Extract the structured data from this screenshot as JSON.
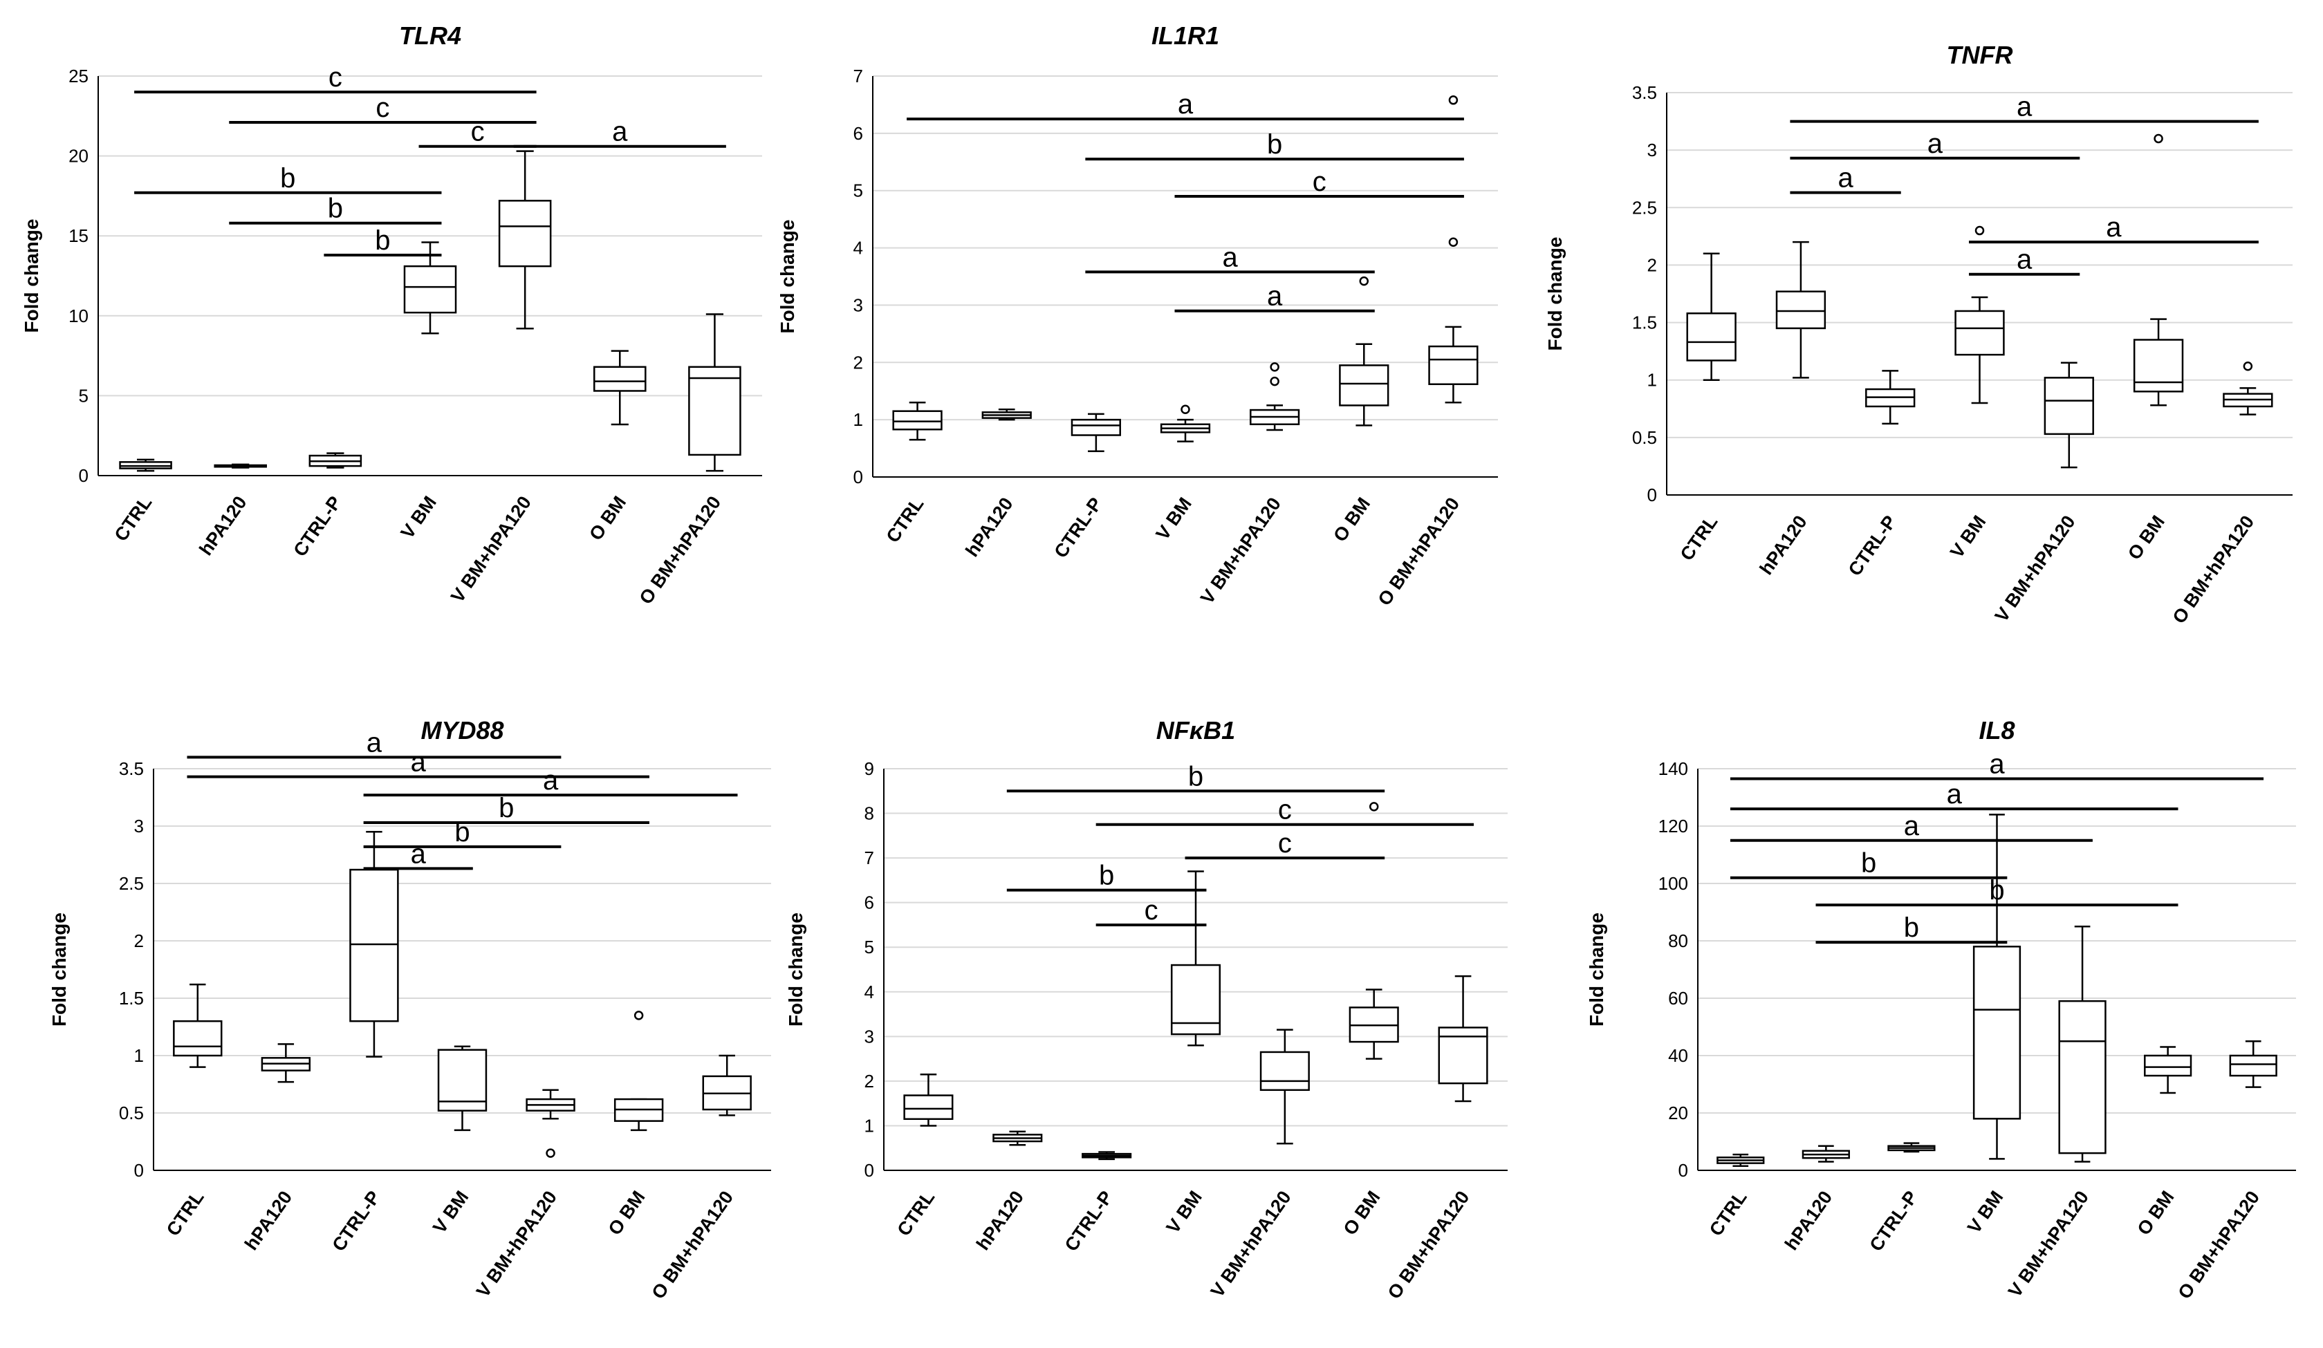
{
  "figure": {
    "background": "#ffffff",
    "line_color": "#000000",
    "grid_color": "#d9d9d9",
    "box_fill": "#ffffff"
  },
  "chart_data": [
    {
      "type": "box",
      "title": "TLR4",
      "ylabel": "Fold change",
      "ylim": [
        0,
        25
      ],
      "yticks": [
        0,
        5,
        10,
        15,
        20,
        25
      ],
      "grid": true,
      "categories": [
        "CTRL",
        "hPA120",
        "CTRL-P",
        "V BM",
        "V BM+hPA120",
        "O BM",
        "O BM+hPA120"
      ],
      "boxes": [
        {
          "min": 0.3,
          "q1": 0.45,
          "median": 0.6,
          "q3": 0.85,
          "max": 1.0,
          "outliers": []
        },
        {
          "min": 0.5,
          "q1": 0.55,
          "median": 0.6,
          "q3": 0.65,
          "max": 0.7,
          "outliers": []
        },
        {
          "min": 0.5,
          "q1": 0.6,
          "median": 0.9,
          "q3": 1.25,
          "max": 1.4,
          "outliers": []
        },
        {
          "min": 8.9,
          "q1": 10.2,
          "median": 11.8,
          "q3": 13.1,
          "max": 14.6,
          "outliers": []
        },
        {
          "min": 9.2,
          "q1": 13.1,
          "median": 15.6,
          "q3": 17.2,
          "max": 20.3,
          "outliers": []
        },
        {
          "min": 3.2,
          "q1": 5.3,
          "median": 5.9,
          "q3": 6.8,
          "max": 7.8,
          "outliers": []
        },
        {
          "min": 0.3,
          "q1": 1.3,
          "median": 6.1,
          "q3": 6.8,
          "max": 10.1,
          "outliers": []
        }
      ],
      "comparisons": [
        {
          "from": 0,
          "to": 4,
          "y": 24.0,
          "label": "c"
        },
        {
          "from": 1,
          "to": 4,
          "y": 22.1,
          "label": "c"
        },
        {
          "from": 3,
          "to": 4,
          "y": 20.6,
          "label": "c"
        },
        {
          "from": 4,
          "to": 6,
          "y": 20.6,
          "label": "a"
        },
        {
          "from": 0,
          "to": 3,
          "y": 17.7,
          "label": "b"
        },
        {
          "from": 1,
          "to": 3,
          "y": 15.8,
          "label": "b"
        },
        {
          "from": 2,
          "to": 3,
          "y": 13.8,
          "label": "b"
        }
      ]
    },
    {
      "type": "box",
      "title": "IL1R1",
      "ylabel": "Fold change",
      "ylim": [
        0,
        7
      ],
      "yticks": [
        0,
        1,
        2,
        3,
        4,
        5,
        6,
        7
      ],
      "grid": true,
      "categories": [
        "CTRL",
        "hPA120",
        "CTRL-P",
        "V BM",
        "V BM+hPA120",
        "O BM",
        "O BM+hPA120"
      ],
      "boxes": [
        {
          "min": 0.65,
          "q1": 0.83,
          "median": 0.97,
          "q3": 1.15,
          "max": 1.3,
          "outliers": []
        },
        {
          "min": 1.0,
          "q1": 1.03,
          "median": 1.08,
          "q3": 1.13,
          "max": 1.18,
          "outliers": []
        },
        {
          "min": 0.45,
          "q1": 0.73,
          "median": 0.9,
          "q3": 1.0,
          "max": 1.1,
          "outliers": []
        },
        {
          "min": 0.62,
          "q1": 0.78,
          "median": 0.85,
          "q3": 0.92,
          "max": 1.0,
          "outliers": [
            1.18
          ]
        },
        {
          "min": 0.82,
          "q1": 0.92,
          "median": 1.05,
          "q3": 1.17,
          "max": 1.25,
          "outliers": [
            1.67,
            1.92
          ]
        },
        {
          "min": 0.9,
          "q1": 1.25,
          "median": 1.63,
          "q3": 1.95,
          "max": 2.32,
          "outliers": [
            3.42
          ]
        },
        {
          "min": 1.3,
          "q1": 1.62,
          "median": 2.05,
          "q3": 2.28,
          "max": 2.62,
          "outliers": [
            4.1,
            6.58
          ]
        }
      ],
      "comparisons": [
        {
          "from": 0,
          "to": 6,
          "y": 6.25,
          "label": "a"
        },
        {
          "from": 2,
          "to": 6,
          "y": 5.55,
          "label": "b"
        },
        {
          "from": 3,
          "to": 6,
          "y": 4.9,
          "label": "c"
        },
        {
          "from": 2,
          "to": 5,
          "y": 3.58,
          "label": "a"
        },
        {
          "from": 3,
          "to": 5,
          "y": 2.9,
          "label": "a"
        }
      ]
    },
    {
      "type": "box",
      "title": "TNFR",
      "ylabel": "Fold change",
      "ylim": [
        0,
        3.5
      ],
      "yticks": [
        0,
        0.5,
        1,
        1.5,
        2,
        2.5,
        3,
        3.5
      ],
      "grid": true,
      "categories": [
        "CTRL",
        "hPA120",
        "CTRL-P",
        "V BM",
        "V BM+hPA120",
        "O BM",
        "O BM+hPA120"
      ],
      "boxes": [
        {
          "min": 1.0,
          "q1": 1.17,
          "median": 1.33,
          "q3": 1.58,
          "max": 2.1,
          "outliers": []
        },
        {
          "min": 1.02,
          "q1": 1.45,
          "median": 1.6,
          "q3": 1.77,
          "max": 2.2,
          "outliers": []
        },
        {
          "min": 0.62,
          "q1": 0.77,
          "median": 0.85,
          "q3": 0.92,
          "max": 1.08,
          "outliers": []
        },
        {
          "min": 0.8,
          "q1": 1.22,
          "median": 1.45,
          "q3": 1.6,
          "max": 1.72,
          "outliers": [
            2.3
          ]
        },
        {
          "min": 0.24,
          "q1": 0.53,
          "median": 0.82,
          "q3": 1.02,
          "max": 1.15,
          "outliers": []
        },
        {
          "min": 0.78,
          "q1": 0.9,
          "median": 0.98,
          "q3": 1.35,
          "max": 1.53,
          "outliers": [
            3.1
          ]
        },
        {
          "min": 0.7,
          "q1": 0.77,
          "median": 0.83,
          "q3": 0.88,
          "max": 0.93,
          "outliers": [
            1.12
          ]
        }
      ],
      "comparisons": [
        {
          "from": 1,
          "to": 6,
          "y": 3.25,
          "label": "a"
        },
        {
          "from": 1,
          "to": 4,
          "y": 2.93,
          "label": "a"
        },
        {
          "from": 1,
          "to": 2,
          "y": 2.63,
          "label": "a"
        },
        {
          "from": 3,
          "to": 6,
          "y": 2.2,
          "label": "a"
        },
        {
          "from": 3,
          "to": 4,
          "y": 1.92,
          "label": "a"
        }
      ]
    },
    {
      "type": "box",
      "title": "MYD88",
      "ylabel": "Fold change",
      "ylim": [
        0,
        3.5
      ],
      "yticks": [
        0,
        0.5,
        1,
        1.5,
        2,
        2.5,
        3,
        3.5
      ],
      "grid": true,
      "categories": [
        "CTRL",
        "hPA120",
        "CTRL-P",
        "V BM",
        "V BM+hPA120",
        "O BM",
        "O BM+hPA120"
      ],
      "boxes": [
        {
          "min": 0.9,
          "q1": 1.0,
          "median": 1.08,
          "q3": 1.3,
          "max": 1.62,
          "outliers": []
        },
        {
          "min": 0.77,
          "q1": 0.87,
          "median": 0.93,
          "q3": 0.98,
          "max": 1.1,
          "outliers": []
        },
        {
          "min": 0.99,
          "q1": 1.3,
          "median": 1.97,
          "q3": 2.62,
          "max": 2.95,
          "outliers": []
        },
        {
          "min": 0.35,
          "q1": 0.52,
          "median": 0.6,
          "q3": 1.05,
          "max": 1.08,
          "outliers": []
        },
        {
          "min": 0.45,
          "q1": 0.52,
          "median": 0.57,
          "q3": 0.62,
          "max": 0.7,
          "outliers": [
            0.15
          ]
        },
        {
          "min": 0.35,
          "q1": 0.43,
          "median": 0.53,
          "q3": 0.62,
          "max": 0.62,
          "outliers": [
            1.35
          ]
        },
        {
          "min": 0.48,
          "q1": 0.53,
          "median": 0.67,
          "q3": 0.82,
          "max": 1.0,
          "outliers": []
        }
      ],
      "comparisons": [
        {
          "from": 0,
          "to": 4,
          "y": 3.6,
          "label": "a"
        },
        {
          "from": 0,
          "to": 5,
          "y": 3.43,
          "label": "a"
        },
        {
          "from": 2,
          "to": 6,
          "y": 3.27,
          "label": "a"
        },
        {
          "from": 2,
          "to": 5,
          "y": 3.03,
          "label": "b"
        },
        {
          "from": 2,
          "to": 4,
          "y": 2.82,
          "label": "b"
        },
        {
          "from": 2,
          "to": 3,
          "y": 2.63,
          "label": "a"
        }
      ]
    },
    {
      "type": "box",
      "title": "NFκB1",
      "ylabel": "Fold change",
      "ylim": [
        0,
        9
      ],
      "yticks": [
        0,
        1,
        2,
        3,
        4,
        5,
        6,
        7,
        8,
        9
      ],
      "grid": true,
      "categories": [
        "CTRL",
        "hPA120",
        "CTRL-P",
        "V BM",
        "V BM+hPA120",
        "O BM",
        "O BM+hPA120"
      ],
      "boxes": [
        {
          "min": 1.0,
          "q1": 1.15,
          "median": 1.38,
          "q3": 1.68,
          "max": 2.15,
          "outliers": []
        },
        {
          "min": 0.57,
          "q1": 0.65,
          "median": 0.72,
          "q3": 0.8,
          "max": 0.87,
          "outliers": []
        },
        {
          "min": 0.25,
          "q1": 0.29,
          "median": 0.33,
          "q3": 0.37,
          "max": 0.41,
          "outliers": []
        },
        {
          "min": 2.8,
          "q1": 3.05,
          "median": 3.3,
          "q3": 4.6,
          "max": 6.7,
          "outliers": []
        },
        {
          "min": 0.6,
          "q1": 1.8,
          "median": 2.0,
          "q3": 2.65,
          "max": 3.15,
          "outliers": []
        },
        {
          "min": 2.5,
          "q1": 2.88,
          "median": 3.25,
          "q3": 3.65,
          "max": 4.05,
          "outliers": [
            8.15
          ]
        },
        {
          "min": 1.55,
          "q1": 1.95,
          "median": 3.0,
          "q3": 3.2,
          "max": 4.35,
          "outliers": []
        }
      ],
      "comparisons": [
        {
          "from": 1,
          "to": 5,
          "y": 8.5,
          "label": "b"
        },
        {
          "from": 2,
          "to": 6,
          "y": 7.75,
          "label": "c"
        },
        {
          "from": 3,
          "to": 5,
          "y": 7.0,
          "label": "c"
        },
        {
          "from": 1,
          "to": 3,
          "y": 6.28,
          "label": "b"
        },
        {
          "from": 2,
          "to": 3,
          "y": 5.5,
          "label": "c"
        }
      ]
    },
    {
      "type": "box",
      "title": "IL8",
      "ylabel": "Fold change",
      "ylim": [
        0,
        140
      ],
      "yticks": [
        0,
        20,
        40,
        60,
        80,
        100,
        120,
        140
      ],
      "grid": true,
      "categories": [
        "CTRL",
        "hPA120",
        "CTRL-P",
        "V BM",
        "V BM+hPA120",
        "O BM",
        "O BM+hPA120"
      ],
      "boxes": [
        {
          "min": 1.5,
          "q1": 2.5,
          "median": 3.5,
          "q3": 4.5,
          "max": 5.5,
          "outliers": []
        },
        {
          "min": 3.0,
          "q1": 4.3,
          "median": 5.5,
          "q3": 6.8,
          "max": 8.5,
          "outliers": []
        },
        {
          "min": 6.5,
          "q1": 7.0,
          "median": 7.8,
          "q3": 8.5,
          "max": 9.5,
          "outliers": []
        },
        {
          "min": 4.0,
          "q1": 18.0,
          "median": 56.0,
          "q3": 78.0,
          "max": 124.0,
          "outliers": []
        },
        {
          "min": 3.0,
          "q1": 6.0,
          "median": 45.0,
          "q3": 59.0,
          "max": 85.0,
          "outliers": []
        },
        {
          "min": 27.0,
          "q1": 33.0,
          "median": 36.0,
          "q3": 40.0,
          "max": 43.0,
          "outliers": []
        },
        {
          "min": 29.0,
          "q1": 33.0,
          "median": 37.0,
          "q3": 40.0,
          "max": 45.0,
          "outliers": []
        }
      ],
      "comparisons": [
        {
          "from": 0,
          "to": 6,
          "y": 136.5,
          "label": "a"
        },
        {
          "from": 0,
          "to": 5,
          "y": 126.0,
          "label": "a"
        },
        {
          "from": 0,
          "to": 4,
          "y": 115.0,
          "label": "a"
        },
        {
          "from": 0,
          "to": 3,
          "y": 102.0,
          "label": "b"
        },
        {
          "from": 1,
          "to": 5,
          "y": 92.5,
          "label": "b"
        },
        {
          "from": 1,
          "to": 3,
          "y": 79.5,
          "label": "b"
        }
      ]
    }
  ]
}
